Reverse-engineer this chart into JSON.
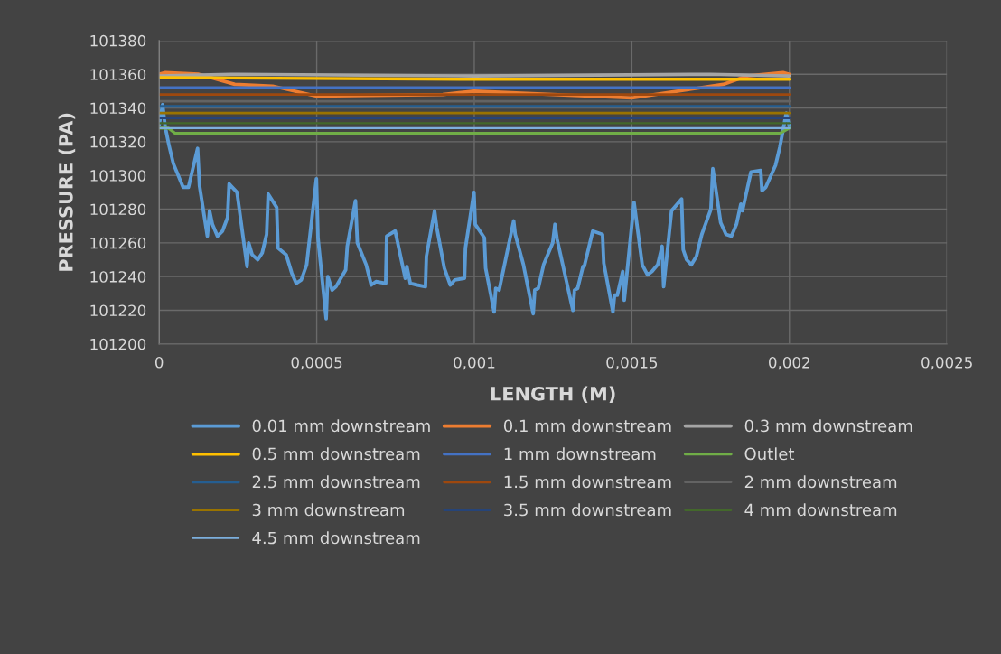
{
  "chart_data": {
    "type": "line",
    "xlabel": "LENGTH (M)",
    "ylabel": "PRESSURE (PA)",
    "xlim": [
      0,
      0.0025
    ],
    "xticks": [
      0,
      {
        "value": 0.0005,
        "label": "0,0005"
      },
      {
        "value": 0.001,
        "label": "0,001"
      },
      {
        "value": 0.0015,
        "label": "0,0015"
      },
      {
        "value": 0.002,
        "label": "0,002"
      },
      {
        "value": 0.0025,
        "label": "0,0025"
      }
    ],
    "ylim": [
      101200,
      101380
    ],
    "yticks": [
      101200,
      101220,
      101240,
      101260,
      101280,
      101300,
      101320,
      101340,
      101360,
      101380
    ],
    "grid": true,
    "legend": "bottom",
    "marker": "none",
    "line_style": "solid",
    "series": [
      {
        "name": "0.01 mm downstream",
        "color": "#5b9bd5",
        "x": [
          0,
          1.1e-05,
          1.9e-05,
          3.1e-05,
          4.5e-05,
          7.6e-05,
          9.3e-05,
          0.000122,
          0.000128,
          0.000153,
          0.00016,
          0.000169,
          0.000185,
          0.000201,
          0.000217,
          0.000222,
          0.000247,
          0.000279,
          0.000284,
          0.000295,
          0.000313,
          0.000327,
          0.000341,
          0.000346,
          0.000373,
          0.000377,
          0.000403,
          0.000421,
          0.000435,
          0.000451,
          0.000468,
          0.000499,
          0.000504,
          0.00053,
          0.000535,
          0.000549,
          0.000561,
          0.000592,
          0.000597,
          0.000623,
          0.000629,
          0.000657,
          0.000673,
          0.000688,
          0.000719,
          0.000722,
          0.000749,
          0.000781,
          0.000786,
          0.000797,
          0.000819,
          0.000845,
          0.000848,
          0.000874,
          0.000881,
          0.000905,
          0.000924,
          0.000938,
          0.000969,
          0.000972,
          0.000999,
          0.001003,
          0.001032,
          0.001036,
          0.001063,
          0.001068,
          0.001079,
          0.001125,
          0.00113,
          0.001156,
          0.001187,
          0.001192,
          0.001203,
          0.00122,
          0.001249,
          0.001256,
          0.001263,
          0.001313,
          0.001318,
          0.001328,
          0.001345,
          0.001349,
          0.001376,
          0.001407,
          0.001411,
          0.00144,
          0.001445,
          0.001454,
          0.001471,
          0.001476,
          0.001507,
          0.001533,
          0.00155,
          0.001564,
          0.001582,
          0.001596,
          0.001601,
          0.001626,
          0.001658,
          0.001663,
          0.001674,
          0.001689,
          0.001705,
          0.001722,
          0.001751,
          0.001757,
          0.001782,
          0.001799,
          0.001816,
          0.001832,
          0.001846,
          0.001851,
          0.001878,
          0.001909,
          0.001913,
          0.001925,
          0.001956,
          0.00197,
          0.00198,
          0.00199,
          0.002
        ],
        "values": [
          101330,
          101342,
          101329,
          101318,
          101307,
          101293,
          101293,
          101316,
          101294,
          101264,
          101279,
          101271,
          101264,
          101267,
          101275,
          101295,
          101290,
          101246,
          101260,
          101253,
          101250,
          101254,
          101265,
          101289,
          101281,
          101257,
          101253,
          101242,
          101236,
          101238,
          101247,
          101298,
          101263,
          101215,
          101240,
          101232,
          101234,
          101244,
          101258,
          101285,
          101260,
          101247,
          101235,
          101237,
          101236,
          101264,
          101267,
          101239,
          101246,
          101236,
          101235,
          101234,
          101252,
          101279,
          101269,
          101245,
          101235,
          101238,
          101239,
          101257,
          101290,
          101271,
          101263,
          101245,
          101219,
          101233,
          101232,
          101273,
          101265,
          101247,
          101218,
          101232,
          101233,
          101247,
          101260,
          101271,
          101262,
          101220,
          101232,
          101233,
          101246,
          101246,
          101267,
          101265,
          101248,
          101219,
          101229,
          101229,
          101243,
          101226,
          101284,
          101247,
          101241,
          101243,
          101247,
          101258,
          101234,
          101279,
          101286,
          101256,
          101250,
          101247,
          101252,
          101265,
          101280,
          101304,
          101272,
          101265,
          101264,
          101271,
          101283,
          101279,
          101302,
          101303,
          101291,
          101293,
          101306,
          101317,
          101327,
          101337,
          101329
        ]
      },
      {
        "name": "0.1 mm downstream",
        "color": "#ed7d31",
        "x": [
          0,
          2e-05,
          0.000126,
          0.00024,
          0.00036,
          0.0005,
          0.0009,
          0.001,
          0.0015,
          0.00179,
          0.001866,
          0.00198,
          0.002
        ],
        "values": [
          101360,
          101361,
          101360,
          101354,
          101353,
          101347,
          101348,
          101350,
          101346,
          101354,
          101359,
          101361,
          101360
        ]
      },
      {
        "name": "0.3 mm downstream",
        "color": "#a5a5a5",
        "x": [
          0,
          0.00025,
          0.001,
          0.00175,
          0.002
        ],
        "values": [
          101359,
          101360,
          101359,
          101360,
          101359
        ]
      },
      {
        "name": "0.5 mm downstream",
        "color": "#ffc000",
        "x": [
          0,
          0.001,
          0.002
        ],
        "values": [
          101358,
          101357,
          101357
        ]
      },
      {
        "name": "1 mm downstream",
        "color": "#4472c4",
        "x": [
          0,
          0.002
        ],
        "values": [
          101352,
          101352
        ]
      },
      {
        "name": "Outlet",
        "color": "#70ad47",
        "x": [
          0,
          3e-05,
          5e-05,
          0.00197,
          0.002
        ],
        "values": [
          101328,
          101328,
          101325,
          101325,
          101328
        ]
      },
      {
        "name": "2.5 mm downstream",
        "color": "#255e91",
        "x": [
          0,
          0.002
        ],
        "values": [
          101341,
          101341
        ]
      },
      {
        "name": "1.5 mm downstream",
        "color": "#9e480e",
        "x": [
          0,
          0.002
        ],
        "values": [
          101348,
          101348
        ]
      },
      {
        "name": "2 mm downstream",
        "color": "#636363",
        "x": [
          0,
          0.002
        ],
        "values": [
          101344,
          101344
        ]
      },
      {
        "name": "3 mm downstream",
        "color": "#997300",
        "x": [
          0,
          0.002
        ],
        "values": [
          101337,
          101337
        ]
      },
      {
        "name": "3.5 mm downstream",
        "color": "#264478",
        "x": [
          0,
          0.002
        ],
        "values": [
          101334,
          101334
        ]
      },
      {
        "name": "4 mm downstream",
        "color": "#43682b",
        "x": [
          0,
          0.002
        ],
        "values": [
          101331,
          101331
        ]
      },
      {
        "name": "4.5 mm downstream",
        "color": "#7cafdd",
        "x": [
          0,
          0.002
        ],
        "values": [
          101328,
          101328
        ]
      }
    ]
  }
}
